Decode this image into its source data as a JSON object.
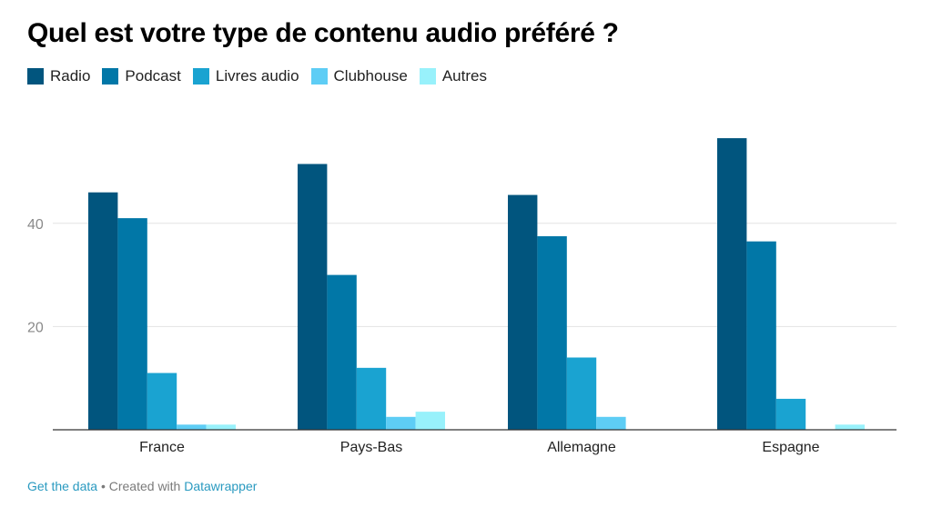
{
  "title": "Quel est votre type de contenu audio préféré ?",
  "chart_data": {
    "type": "bar",
    "title": "Quel est votre type de contenu audio préféré ?",
    "categories": [
      "France",
      "Pays-Bas",
      "Allemagne",
      "Espagne"
    ],
    "series": [
      {
        "name": "Radio",
        "color": "#01557e",
        "values": [
          46,
          51.5,
          45.5,
          56.5
        ]
      },
      {
        "name": "Podcast",
        "color": "#0177a7",
        "values": [
          41,
          30,
          37.5,
          36.5
        ]
      },
      {
        "name": "Livres audio",
        "color": "#1aa3d1",
        "values": [
          11,
          12,
          14,
          6
        ]
      },
      {
        "name": "Clubhouse",
        "color": "#5ecdf5",
        "values": [
          1,
          2.5,
          2.5,
          0
        ]
      },
      {
        "name": "Autres",
        "color": "#98f1fb",
        "values": [
          1,
          3.5,
          0,
          1
        ]
      }
    ],
    "yticks": [
      20,
      40
    ],
    "ylim": [
      0,
      60
    ],
    "xlabel": "",
    "ylabel": "",
    "grid": true,
    "legend_position": "top-left"
  },
  "footer": {
    "get_data": "Get the data",
    "separator": " • Created with ",
    "tool": "Datawrapper"
  }
}
